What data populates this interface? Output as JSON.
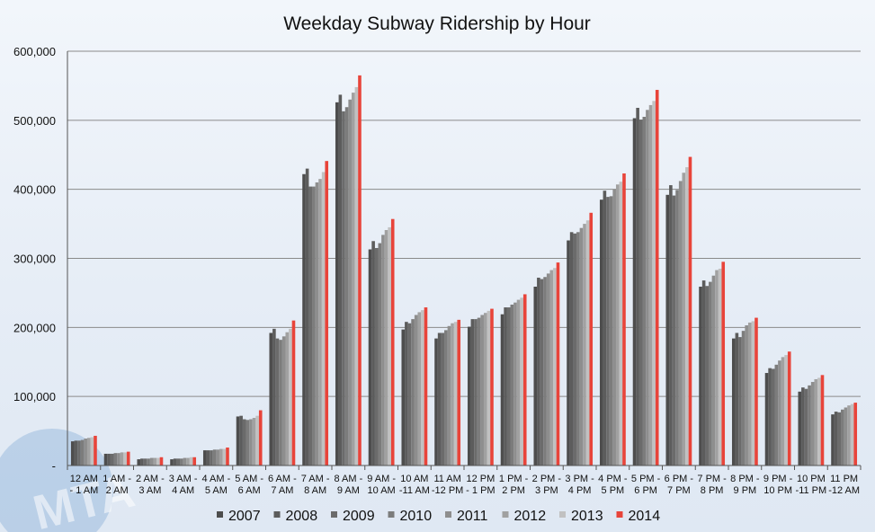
{
  "chart_data": {
    "type": "bar",
    "title": "Weekday Subway Ridership by Hour",
    "xlabel": "",
    "ylabel": "",
    "ylim": [
      0,
      600000
    ],
    "yticks": [
      {
        "value": 0,
        "label": "-"
      },
      {
        "value": 100000,
        "label": "100,000"
      },
      {
        "value": 200000,
        "label": "200,000"
      },
      {
        "value": 300000,
        "label": "300,000"
      },
      {
        "value": 400000,
        "label": "400,000"
      },
      {
        "value": 500000,
        "label": "500,000"
      },
      {
        "value": 600000,
        "label": "600,000"
      }
    ],
    "grid": true,
    "legend_position": "bottom",
    "categories": [
      [
        "12 AM",
        "- 1 AM"
      ],
      [
        "1 AM -",
        "2 AM"
      ],
      [
        "2 AM -",
        "3 AM"
      ],
      [
        "3 AM -",
        "4 AM"
      ],
      [
        "4 AM -",
        "5 AM"
      ],
      [
        "5 AM -",
        "6 AM"
      ],
      [
        "6 AM -",
        "7 AM"
      ],
      [
        "7 AM -",
        "8 AM"
      ],
      [
        "8 AM -",
        "9 AM"
      ],
      [
        "9 AM -",
        "10 AM"
      ],
      [
        "10 AM",
        "-11 AM"
      ],
      [
        "11 AM",
        "-12 PM"
      ],
      [
        "12 PM",
        "- 1 PM"
      ],
      [
        "1 PM -",
        "2 PM"
      ],
      [
        "2 PM -",
        "3 PM"
      ],
      [
        "3 PM -",
        "4 PM"
      ],
      [
        "4 PM -",
        "5 PM"
      ],
      [
        "5 PM -",
        "6 PM"
      ],
      [
        "6 PM -",
        "7 PM"
      ],
      [
        "7 PM -",
        "8 PM"
      ],
      [
        "8 PM -",
        "9 PM"
      ],
      [
        "9 PM -",
        "10 PM"
      ],
      [
        "10 PM",
        "-11 PM"
      ],
      [
        "11 PM",
        "-12 AM"
      ]
    ],
    "series": [
      {
        "name": "2007",
        "color": "#4d4d4d",
        "values": [
          35000,
          17000,
          9000,
          9000,
          22000,
          71000,
          192000,
          422000,
          526000,
          313000,
          197000,
          184000,
          201000,
          219000,
          259000,
          326000,
          385000,
          503000,
          392000,
          259000,
          184000,
          134000,
          107000,
          74000
        ]
      },
      {
        "name": "2008",
        "color": "#5c5c5c",
        "values": [
          36000,
          17000,
          10000,
          10000,
          22000,
          72000,
          198000,
          430000,
          537000,
          325000,
          208000,
          192000,
          212000,
          229000,
          272000,
          338000,
          398000,
          518000,
          406000,
          268000,
          192000,
          141000,
          113000,
          78000
        ]
      },
      {
        "name": "2009",
        "color": "#6b6b6b",
        "values": [
          36000,
          17000,
          10000,
          10000,
          22000,
          67000,
          184000,
          404000,
          513000,
          315000,
          206000,
          192000,
          212000,
          229000,
          270000,
          336000,
          389000,
          501000,
          391000,
          260000,
          186000,
          140000,
          111000,
          77000
        ]
      },
      {
        "name": "2010",
        "color": "#7c7c7c",
        "values": [
          37000,
          18000,
          10000,
          10000,
          23000,
          66000,
          182000,
          404000,
          519000,
          322000,
          212000,
          196000,
          214000,
          233000,
          273000,
          338000,
          390000,
          505000,
          399000,
          266000,
          195000,
          146000,
          116000,
          81000
        ]
      },
      {
        "name": "2011",
        "color": "#8e8e8e",
        "values": [
          39000,
          18000,
          11000,
          11000,
          23000,
          67000,
          187000,
          410000,
          530000,
          334000,
          218000,
          202000,
          218000,
          236000,
          278000,
          344000,
          400000,
          515000,
          412000,
          275000,
          203000,
          152000,
          121000,
          84000
        ]
      },
      {
        "name": "2012",
        "color": "#a1a1a1",
        "values": [
          40000,
          19000,
          11000,
          11000,
          24000,
          69000,
          193000,
          415000,
          540000,
          341000,
          222000,
          206000,
          221000,
          240000,
          283000,
          350000,
          407000,
          522000,
          424000,
          283000,
          207000,
          157000,
          125000,
          87000
        ]
      },
      {
        "name": "2013",
        "color": "#c1c1c1",
        "values": [
          41000,
          19000,
          11000,
          12000,
          24000,
          72000,
          198000,
          425000,
          548000,
          345000,
          225000,
          208000,
          224000,
          243000,
          286000,
          355000,
          411000,
          528000,
          432000,
          285000,
          209000,
          160000,
          127000,
          89000
        ]
      },
      {
        "name": "2014",
        "color": "#e8443a",
        "values": [
          43000,
          20000,
          12000,
          12000,
          26000,
          80000,
          210000,
          441000,
          565000,
          357000,
          229000,
          211000,
          227000,
          248000,
          294000,
          366000,
          423000,
          544000,
          447000,
          295000,
          214000,
          165000,
          131000,
          91000
        ]
      }
    ]
  },
  "watermark": "MTA"
}
